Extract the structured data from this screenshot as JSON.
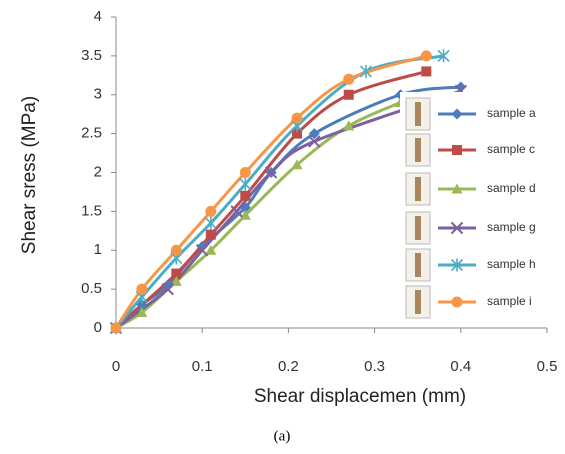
{
  "chart_data": {
    "type": "line",
    "xlabel": "Shear displacemen (mm)",
    "ylabel": "Shear sress (MPa)",
    "caption": "(a)",
    "xlim": [
      0,
      0.5
    ],
    "xticks": [
      0,
      0.1,
      0.2,
      0.3,
      0.4,
      0.5
    ],
    "ylim": [
      0,
      4
    ],
    "yticks": [
      0,
      0.5,
      1,
      1.5,
      2,
      2.5,
      3,
      3.5,
      4
    ],
    "grid": false,
    "legend": "right",
    "series": [
      {
        "name": "sample a",
        "color": "#4a7ebb",
        "marker": "diamond",
        "x": [
          0,
          0.03,
          0.06,
          0.1,
          0.15,
          0.18,
          0.23,
          0.33,
          0.4
        ],
        "values": [
          0,
          0.3,
          0.55,
          1.05,
          1.55,
          2.0,
          2.5,
          3.0,
          3.1
        ]
      },
      {
        "name": "sample c",
        "color": "#be4b48",
        "marker": "square",
        "x": [
          0,
          0.07,
          0.11,
          0.15,
          0.21,
          0.27,
          0.36
        ],
        "values": [
          0,
          0.7,
          1.2,
          1.7,
          2.5,
          3.0,
          3.3
        ]
      },
      {
        "name": "sample d",
        "color": "#98b954",
        "marker": "triangle",
        "x": [
          0,
          0.03,
          0.07,
          0.11,
          0.15,
          0.21,
          0.27,
          0.33
        ],
        "values": [
          0,
          0.2,
          0.6,
          1.0,
          1.45,
          2.1,
          2.6,
          2.9
        ]
      },
      {
        "name": "sample g",
        "color": "#7d60a0",
        "marker": "x",
        "x": [
          0,
          0.06,
          0.1,
          0.14,
          0.18,
          0.23,
          0.4
        ],
        "values": [
          0,
          0.5,
          1.0,
          1.5,
          2.0,
          2.4,
          3.05
        ]
      },
      {
        "name": "sample h",
        "color": "#4bacc6",
        "marker": "star",
        "x": [
          0,
          0.03,
          0.07,
          0.11,
          0.15,
          0.21,
          0.29,
          0.38
        ],
        "values": [
          0,
          0.4,
          0.9,
          1.35,
          1.85,
          2.6,
          3.3,
          3.5
        ]
      },
      {
        "name": "sample i",
        "color": "#f79646",
        "marker": "circle",
        "x": [
          0,
          0.03,
          0.07,
          0.11,
          0.15,
          0.21,
          0.27,
          0.36
        ],
        "values": [
          0,
          0.5,
          1.0,
          1.5,
          2.0,
          2.7,
          3.2,
          3.5
        ]
      }
    ]
  }
}
